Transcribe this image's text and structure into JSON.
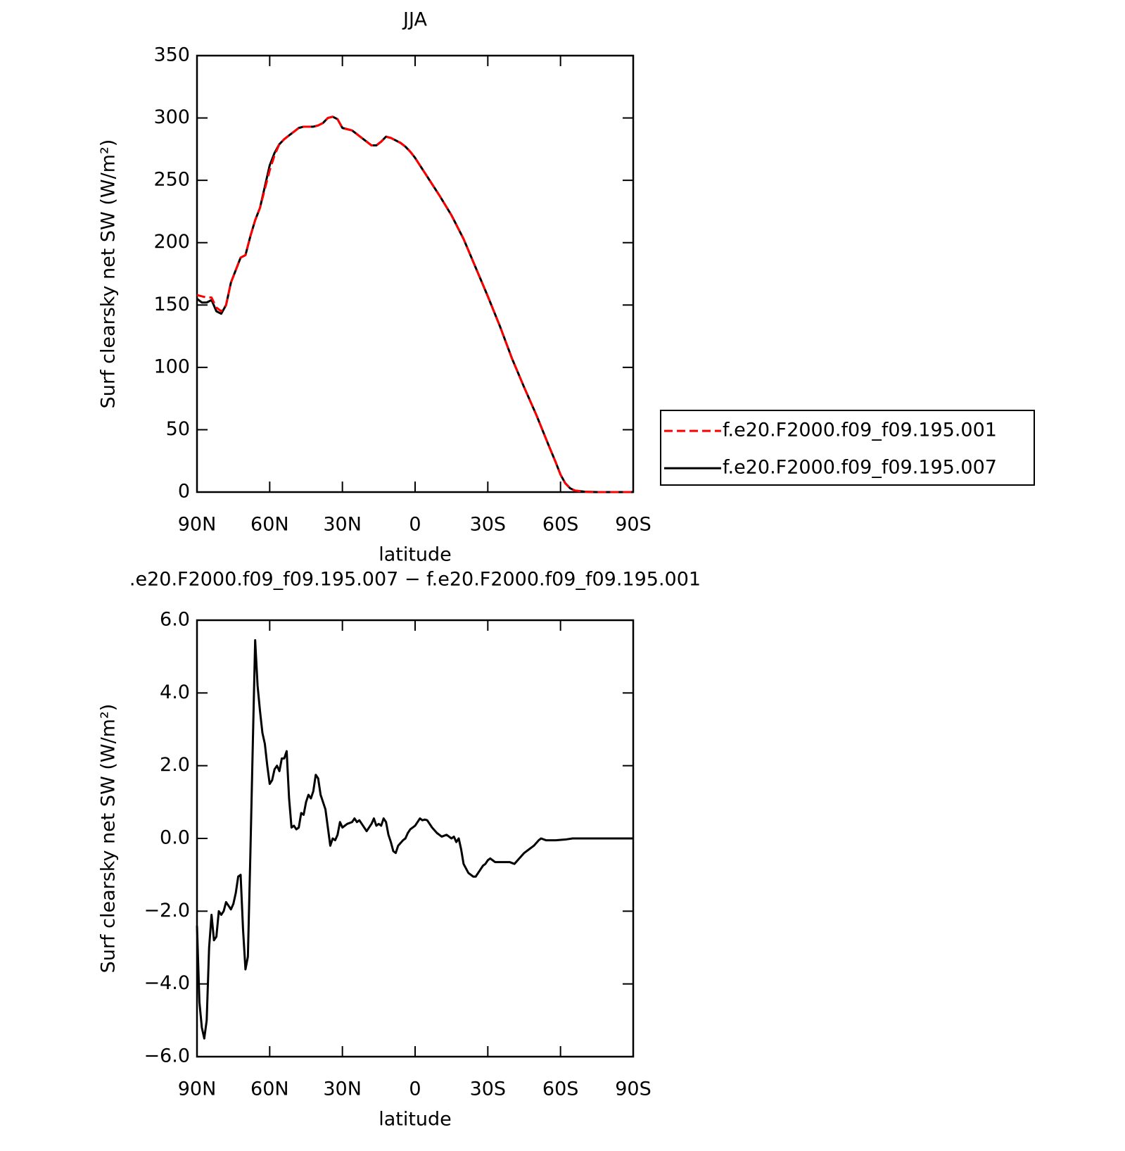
{
  "chart_data": [
    {
      "type": "line",
      "title": "JJA",
      "xlabel": "latitude",
      "ylabel": "Surf clearsky net SW (W/m²)",
      "xlim": [
        90,
        -90
      ],
      "xticks": [
        {
          "value": 90,
          "label": "90N"
        },
        {
          "value": 60,
          "label": "60N"
        },
        {
          "value": 30,
          "label": "30N"
        },
        0,
        {
          "value": -30,
          "label": "30S"
        },
        {
          "value": -60,
          "label": "60S"
        },
        {
          "value": -90,
          "label": "90S"
        }
      ],
      "ylim": [
        0,
        350
      ],
      "yticks": [
        0,
        50,
        100,
        150,
        200,
        250,
        300,
        350
      ],
      "legend": "right",
      "x": [
        90,
        88,
        86,
        84,
        82,
        80,
        78,
        76,
        74,
        72,
        70,
        68,
        66,
        64,
        62,
        60,
        58,
        56,
        54,
        52,
        50,
        48,
        46,
        44,
        42,
        40,
        38,
        36,
        34,
        32,
        30,
        28,
        26,
        24,
        22,
        20,
        18,
        16,
        14,
        12,
        10,
        8,
        6,
        4,
        2,
        0,
        -2,
        -5,
        -10,
        -15,
        -20,
        -25,
        -30,
        -35,
        -40,
        -45,
        -50,
        -55,
        -58,
        -60,
        -62,
        -64,
        -66,
        -70,
        -75,
        -80,
        -90
      ],
      "series": [
        {
          "name": "f.e20.F2000.f09_f09.195.007",
          "color": "#000000",
          "line_style": "solid",
          "values": [
            155,
            152,
            152,
            154,
            145,
            143,
            150,
            168,
            178,
            188,
            190,
            205,
            218,
            228,
            245,
            262,
            272,
            279,
            283,
            286,
            289,
            292,
            293,
            293,
            293,
            294,
            296,
            300,
            301,
            299,
            292,
            291,
            290,
            287,
            284,
            281,
            278,
            278,
            281,
            285,
            284,
            282,
            280,
            277,
            273,
            268,
            262,
            253,
            238,
            222,
            203,
            180,
            157,
            133,
            107,
            84,
            62,
            38,
            24,
            14,
            7,
            3,
            1.2,
            0.3,
            0,
            0,
            0
          ]
        },
        {
          "name": "f.e20.F2000.f09_f09.195.001",
          "color": "#ff0000",
          "line_style": "dashed",
          "values": [
            158,
            157,
            156,
            156,
            148,
            145,
            150,
            168,
            178,
            188,
            190,
            205,
            218,
            228,
            243,
            258,
            270,
            279,
            283,
            286,
            289,
            292,
            293,
            293,
            293,
            294,
            296,
            300,
            301,
            299,
            292,
            291,
            290,
            287,
            284,
            281,
            278,
            278,
            281,
            285,
            284,
            282,
            280,
            277,
            273,
            268,
            262,
            253,
            238,
            222,
            203,
            180,
            157,
            133,
            107,
            84,
            62,
            38,
            24,
            14,
            7,
            3,
            1.2,
            0.3,
            0,
            0,
            0
          ]
        }
      ]
    },
    {
      "type": "line",
      "title": ".e20.F2000.f09_f09.195.007 − f.e20.F2000.f09_f09.195.001",
      "xlabel": "latitude",
      "ylabel": "Surf clearsky net SW (W/m²)",
      "xlim": [
        90,
        -90
      ],
      "xticks": [
        {
          "value": 90,
          "label": "90N"
        },
        {
          "value": 60,
          "label": "60N"
        },
        {
          "value": 30,
          "label": "30N"
        },
        0,
        {
          "value": -30,
          "label": "30S"
        },
        {
          "value": -60,
          "label": "60S"
        },
        {
          "value": -90,
          "label": "90S"
        }
      ],
      "ylim": [
        -6,
        6
      ],
      "yticks": [
        {
          "value": -6,
          "label": "−6.0"
        },
        {
          "value": -4,
          "label": "−4.0"
        },
        {
          "value": -2,
          "label": "−2.0"
        },
        {
          "value": 0,
          "label": "0.0"
        },
        {
          "value": 2,
          "label": "2.0"
        },
        {
          "value": 4,
          "label": "4.0"
        },
        {
          "value": 6,
          "label": "6.0"
        }
      ],
      "x": [
        90,
        89,
        88,
        87,
        86,
        85,
        84,
        83,
        82,
        81,
        80,
        79,
        78,
        77,
        76,
        75,
        74,
        73,
        72,
        71,
        70,
        69,
        68,
        67,
        66,
        65,
        64,
        63,
        62,
        61,
        60,
        59,
        58,
        57,
        56,
        55,
        54,
        53,
        52,
        51,
        50,
        49,
        48,
        47,
        46,
        45,
        44,
        43,
        42,
        41,
        40,
        39,
        38,
        37,
        36,
        35,
        34,
        33,
        32,
        31,
        30,
        28,
        26,
        25,
        24,
        23,
        22,
        20,
        18,
        17,
        16,
        15,
        14,
        13,
        12,
        11,
        10,
        9,
        8,
        7,
        5,
        4,
        3,
        2,
        0,
        -2,
        -3,
        -4,
        -5,
        -7,
        -9,
        -11,
        -13,
        -15,
        -16,
        -17,
        -18,
        -19,
        -20,
        -22,
        -24,
        -25,
        -27,
        -28,
        -29,
        -30,
        -31,
        -32,
        -33,
        -35,
        -37,
        -39,
        -41,
        -43,
        -45,
        -47,
        -49,
        -51,
        -52,
        -54,
        -58,
        -62,
        -65,
        -70,
        -80,
        -90
      ],
      "series": [
        {
          "name": "f.e20.F2000.f09_f09.195.007 − f.e20.F2000.f09_f09.195.001",
          "color": "#000000",
          "line_style": "solid",
          "values": [
            -2.4,
            -4.5,
            -5.2,
            -5.5,
            -5.0,
            -3.0,
            -2.1,
            -2.8,
            -2.7,
            -2.0,
            -2.1,
            -2.0,
            -1.75,
            -1.85,
            -1.95,
            -1.8,
            -1.5,
            -1.05,
            -1.0,
            -2.5,
            -3.6,
            -3.25,
            -0.5,
            2.5,
            5.45,
            4.2,
            3.5,
            2.9,
            2.6,
            2.0,
            1.5,
            1.6,
            1.9,
            2.0,
            1.85,
            2.2,
            2.2,
            2.4,
            1.1,
            0.3,
            0.35,
            0.25,
            0.3,
            0.7,
            0.65,
            1.0,
            1.2,
            1.1,
            1.3,
            1.75,
            1.65,
            1.2,
            1.0,
            0.8,
            0.3,
            -0.2,
            0,
            -0.05,
            0.1,
            0.45,
            0.3,
            0.4,
            0.45,
            0.55,
            0.45,
            0.5,
            0.4,
            0.2,
            0.4,
            0.55,
            0.35,
            0.4,
            0.35,
            0.55,
            0.45,
            0.1,
            -0.1,
            -0.35,
            -0.4,
            -0.2,
            -0.05,
            0,
            0.15,
            0.25,
            0.35,
            0.55,
            0.5,
            0.52,
            0.5,
            0.3,
            0.15,
            0.05,
            0.1,
            0,
            0.05,
            -0.1,
            0,
            -0.3,
            -0.7,
            -0.95,
            -1.05,
            -1.05,
            -0.85,
            -0.75,
            -0.7,
            -0.6,
            -0.55,
            -0.6,
            -0.65,
            -0.65,
            -0.65,
            -0.65,
            -0.7,
            -0.55,
            -0.4,
            -0.3,
            -0.2,
            -0.05,
            0,
            -0.05,
            -0.05,
            -0.03,
            0,
            0,
            0,
            0
          ]
        }
      ]
    }
  ]
}
